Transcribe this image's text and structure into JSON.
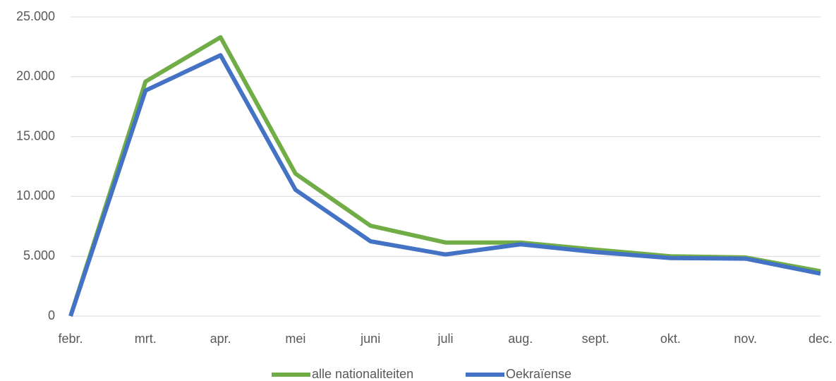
{
  "chart_data": {
    "type": "line",
    "categories": [
      "febr.",
      "mrt.",
      "apr.",
      "mei",
      "juni",
      "juli",
      "aug.",
      "sept.",
      "okt.",
      "nov.",
      "dec."
    ],
    "series": [
      {
        "name": "alle nationaliteiten",
        "color": "#70ad47",
        "values": [
          0,
          19600,
          23300,
          11900,
          7550,
          6150,
          6150,
          5550,
          5000,
          4900,
          3750
        ]
      },
      {
        "name": "Oekraïense",
        "color": "#4472c4",
        "values": [
          0,
          18850,
          21800,
          10550,
          6250,
          5150,
          6000,
          5350,
          4850,
          4800,
          3550
        ]
      }
    ],
    "ylim": [
      0,
      25000
    ],
    "yticks": [
      0,
      {
        "value": 5000,
        "label": "5.000"
      },
      {
        "value": 10000,
        "label": "10.000"
      },
      {
        "value": 15000,
        "label": "15.000"
      },
      {
        "value": 20000,
        "label": "20.000"
      },
      {
        "value": 25000,
        "label": "25.000"
      }
    ],
    "grid": true,
    "legend": "bottom"
  }
}
